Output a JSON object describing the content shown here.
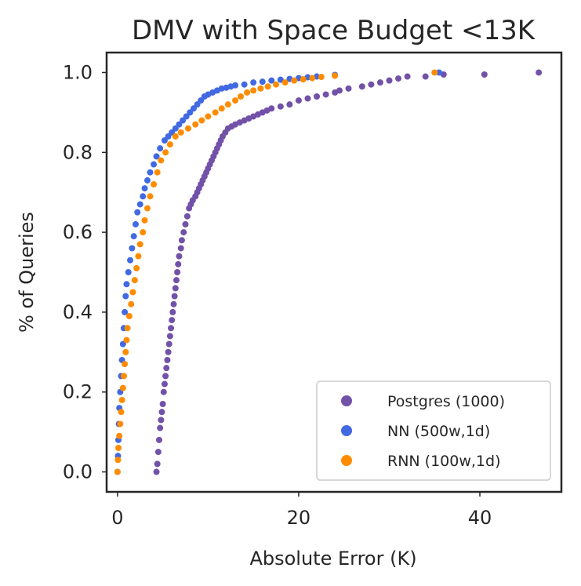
{
  "chart_data": {
    "type": "scatter",
    "title": "DMV with Space Budget <13K",
    "xlabel": "Absolute Error (K)",
    "ylabel": "% of Queries",
    "xlim": [
      -1.2,
      49
    ],
    "ylim": [
      -0.05,
      1.05
    ],
    "xticks": [
      0,
      20,
      40
    ],
    "yticks": [
      0.0,
      0.2,
      0.4,
      0.6,
      0.8,
      1.0
    ],
    "xtick_labels": [
      "0",
      "20",
      "40"
    ],
    "ytick_labels": [
      "0.0",
      "0.2",
      "0.4",
      "0.6",
      "0.8",
      "1.0"
    ],
    "grid": false,
    "legend_position": "lower-right",
    "series": [
      {
        "name": "Postgres (1000)",
        "color": "#7251A8",
        "points": [
          [
            4.3,
            0.0
          ],
          [
            4.4,
            0.02
          ],
          [
            4.5,
            0.05
          ],
          [
            4.6,
            0.08
          ],
          [
            4.7,
            0.11
          ],
          [
            4.8,
            0.13
          ],
          [
            4.9,
            0.15
          ],
          [
            5.0,
            0.17
          ],
          [
            5.1,
            0.2
          ],
          [
            5.2,
            0.22
          ],
          [
            5.3,
            0.24
          ],
          [
            5.4,
            0.26
          ],
          [
            5.5,
            0.28
          ],
          [
            5.6,
            0.3
          ],
          [
            5.7,
            0.32
          ],
          [
            5.8,
            0.34
          ],
          [
            5.9,
            0.36
          ],
          [
            6.0,
            0.38
          ],
          [
            6.1,
            0.4
          ],
          [
            6.2,
            0.42
          ],
          [
            6.3,
            0.44
          ],
          [
            6.4,
            0.46
          ],
          [
            6.5,
            0.48
          ],
          [
            6.6,
            0.5
          ],
          [
            6.7,
            0.52
          ],
          [
            6.8,
            0.54
          ],
          [
            7.0,
            0.56
          ],
          [
            7.1,
            0.58
          ],
          [
            7.3,
            0.6
          ],
          [
            7.5,
            0.62
          ],
          [
            7.7,
            0.64
          ],
          [
            7.9,
            0.66
          ],
          [
            8.1,
            0.67
          ],
          [
            8.3,
            0.68
          ],
          [
            8.6,
            0.69
          ],
          [
            8.8,
            0.7
          ],
          [
            9.0,
            0.71
          ],
          [
            9.2,
            0.72
          ],
          [
            9.4,
            0.73
          ],
          [
            9.6,
            0.74
          ],
          [
            9.8,
            0.75
          ],
          [
            10.0,
            0.76
          ],
          [
            10.2,
            0.77
          ],
          [
            10.4,
            0.78
          ],
          [
            10.6,
            0.79
          ],
          [
            10.8,
            0.8
          ],
          [
            11.0,
            0.81
          ],
          [
            11.2,
            0.82
          ],
          [
            11.4,
            0.83
          ],
          [
            11.6,
            0.84
          ],
          [
            11.9,
            0.85
          ],
          [
            12.2,
            0.86
          ],
          [
            12.6,
            0.865
          ],
          [
            13.0,
            0.87
          ],
          [
            13.5,
            0.875
          ],
          [
            14.0,
            0.88
          ],
          [
            14.5,
            0.885
          ],
          [
            15.0,
            0.89
          ],
          [
            15.5,
            0.895
          ],
          [
            16.0,
            0.9
          ],
          [
            16.5,
            0.905
          ],
          [
            17.0,
            0.91
          ],
          [
            18.0,
            0.915
          ],
          [
            19.0,
            0.92
          ],
          [
            20.0,
            0.93
          ],
          [
            21.0,
            0.935
          ],
          [
            22.0,
            0.94
          ],
          [
            23.0,
            0.945
          ],
          [
            24.0,
            0.95
          ],
          [
            24.5,
            0.955
          ],
          [
            25.5,
            0.96
          ],
          [
            27.0,
            0.965
          ],
          [
            28.0,
            0.97
          ],
          [
            29.0,
            0.975
          ],
          [
            30.0,
            0.98
          ],
          [
            31.0,
            0.985
          ],
          [
            32.0,
            0.99
          ],
          [
            34.0,
            0.99
          ],
          [
            36.0,
            0.995
          ],
          [
            40.5,
            0.995
          ],
          [
            46.5,
            1.0
          ]
        ]
      },
      {
        "name": "NN (500w,1d)",
        "color": "#4169E1",
        "points": [
          [
            0.0,
            0.0
          ],
          [
            0.05,
            0.04
          ],
          [
            0.1,
            0.08
          ],
          [
            0.15,
            0.12
          ],
          [
            0.2,
            0.16
          ],
          [
            0.3,
            0.2
          ],
          [
            0.4,
            0.24
          ],
          [
            0.5,
            0.28
          ],
          [
            0.6,
            0.32
          ],
          [
            0.7,
            0.36
          ],
          [
            0.8,
            0.4
          ],
          [
            0.9,
            0.44
          ],
          [
            1.0,
            0.47
          ],
          [
            1.2,
            0.5
          ],
          [
            1.4,
            0.53
          ],
          [
            1.6,
            0.56
          ],
          [
            1.8,
            0.59
          ],
          [
            2.0,
            0.62
          ],
          [
            2.2,
            0.65
          ],
          [
            2.5,
            0.67
          ],
          [
            2.8,
            0.69
          ],
          [
            3.0,
            0.71
          ],
          [
            3.3,
            0.73
          ],
          [
            3.6,
            0.75
          ],
          [
            4.0,
            0.77
          ],
          [
            4.3,
            0.79
          ],
          [
            4.7,
            0.81
          ],
          [
            5.2,
            0.83
          ],
          [
            5.6,
            0.84
          ],
          [
            6.0,
            0.85
          ],
          [
            6.4,
            0.86
          ],
          [
            6.8,
            0.87
          ],
          [
            7.2,
            0.88
          ],
          [
            7.6,
            0.89
          ],
          [
            8.0,
            0.9
          ],
          [
            8.4,
            0.91
          ],
          [
            8.8,
            0.92
          ],
          [
            9.2,
            0.93
          ],
          [
            9.6,
            0.94
          ],
          [
            10.0,
            0.945
          ],
          [
            10.5,
            0.95
          ],
          [
            11.0,
            0.955
          ],
          [
            11.5,
            0.96
          ],
          [
            12.0,
            0.962
          ],
          [
            12.5,
            0.965
          ],
          [
            13.0,
            0.968
          ],
          [
            14.0,
            0.97
          ],
          [
            15.0,
            0.975
          ],
          [
            16.0,
            0.977
          ],
          [
            17.0,
            0.98
          ],
          [
            18.0,
            0.982
          ],
          [
            19.0,
            0.984
          ],
          [
            20.0,
            0.986
          ],
          [
            21.0,
            0.988
          ],
          [
            22.0,
            0.99
          ],
          [
            24.0,
            0.994
          ],
          [
            35.5,
            1.0
          ]
        ]
      },
      {
        "name": "RNN (100w,1d)",
        "color": "#FF8C00",
        "points": [
          [
            0.0,
            0.0
          ],
          [
            0.05,
            0.03
          ],
          [
            0.1,
            0.06
          ],
          [
            0.2,
            0.09
          ],
          [
            0.3,
            0.12
          ],
          [
            0.4,
            0.15
          ],
          [
            0.5,
            0.18
          ],
          [
            0.6,
            0.21
          ],
          [
            0.7,
            0.24
          ],
          [
            0.8,
            0.27
          ],
          [
            0.9,
            0.3
          ],
          [
            1.0,
            0.33
          ],
          [
            1.1,
            0.36
          ],
          [
            1.3,
            0.39
          ],
          [
            1.5,
            0.42
          ],
          [
            1.7,
            0.45
          ],
          [
            1.9,
            0.48
          ],
          [
            2.1,
            0.51
          ],
          [
            2.3,
            0.54
          ],
          [
            2.5,
            0.57
          ],
          [
            2.8,
            0.6
          ],
          [
            3.0,
            0.63
          ],
          [
            3.3,
            0.66
          ],
          [
            3.6,
            0.69
          ],
          [
            4.0,
            0.72
          ],
          [
            4.4,
            0.75
          ],
          [
            4.8,
            0.78
          ],
          [
            5.3,
            0.8
          ],
          [
            5.8,
            0.82
          ],
          [
            6.4,
            0.84
          ],
          [
            7.0,
            0.85
          ],
          [
            7.8,
            0.86
          ],
          [
            8.6,
            0.87
          ],
          [
            9.3,
            0.88
          ],
          [
            10.0,
            0.89
          ],
          [
            10.8,
            0.9
          ],
          [
            11.5,
            0.91
          ],
          [
            12.2,
            0.92
          ],
          [
            13.0,
            0.93
          ],
          [
            13.6,
            0.94
          ],
          [
            14.3,
            0.95
          ],
          [
            15.0,
            0.955
          ],
          [
            15.8,
            0.96
          ],
          [
            16.6,
            0.965
          ],
          [
            17.5,
            0.97
          ],
          [
            18.5,
            0.975
          ],
          [
            19.5,
            0.98
          ],
          [
            20.5,
            0.983
          ],
          [
            21.5,
            0.986
          ],
          [
            22.5,
            0.989
          ],
          [
            24.0,
            0.992
          ],
          [
            35.0,
            1.0
          ]
        ]
      }
    ]
  }
}
